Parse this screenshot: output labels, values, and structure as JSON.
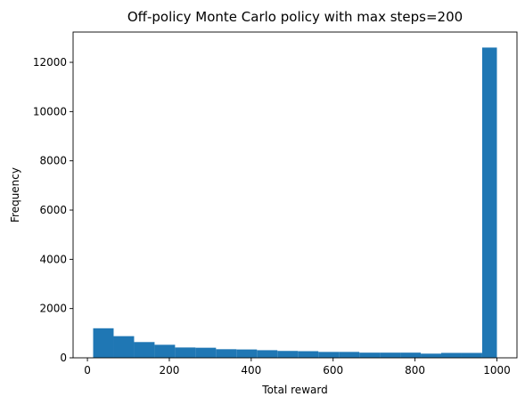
{
  "chart_data": {
    "type": "bar",
    "title": "Off-policy Monte Carlo policy with max steps=200",
    "xlabel": "Total reward",
    "ylabel": "Frequency",
    "xlim": [
      -35,
      1049
    ],
    "ylim": [
      0,
      13230
    ],
    "xticks": [
      0,
      200,
      400,
      600,
      800,
      1000
    ],
    "yticks": [
      0,
      2000,
      4000,
      6000,
      8000,
      10000,
      12000
    ],
    "bar_color": "#1f77b4",
    "bins": [
      {
        "x0": 14,
        "x1": 64,
        "value": 1200
      },
      {
        "x0": 64,
        "x1": 114,
        "value": 880
      },
      {
        "x0": 114,
        "x1": 164,
        "value": 640
      },
      {
        "x0": 164,
        "x1": 214,
        "value": 530
      },
      {
        "x0": 214,
        "x1": 264,
        "value": 420
      },
      {
        "x0": 264,
        "x1": 314,
        "value": 410
      },
      {
        "x0": 314,
        "x1": 364,
        "value": 350
      },
      {
        "x0": 364,
        "x1": 414,
        "value": 340
      },
      {
        "x0": 414,
        "x1": 464,
        "value": 310
      },
      {
        "x0": 464,
        "x1": 514,
        "value": 280
      },
      {
        "x0": 514,
        "x1": 564,
        "value": 270
      },
      {
        "x0": 564,
        "x1": 614,
        "value": 240
      },
      {
        "x0": 614,
        "x1": 664,
        "value": 240
      },
      {
        "x0": 664,
        "x1": 714,
        "value": 210
      },
      {
        "x0": 714,
        "x1": 764,
        "value": 210
      },
      {
        "x0": 764,
        "x1": 814,
        "value": 210
      },
      {
        "x0": 814,
        "x1": 864,
        "value": 170
      },
      {
        "x0": 864,
        "x1": 914,
        "value": 200
      },
      {
        "x0": 914,
        "x1": 964,
        "value": 200
      },
      {
        "x0": 964,
        "x1": 1000,
        "value": 12600
      }
    ]
  }
}
